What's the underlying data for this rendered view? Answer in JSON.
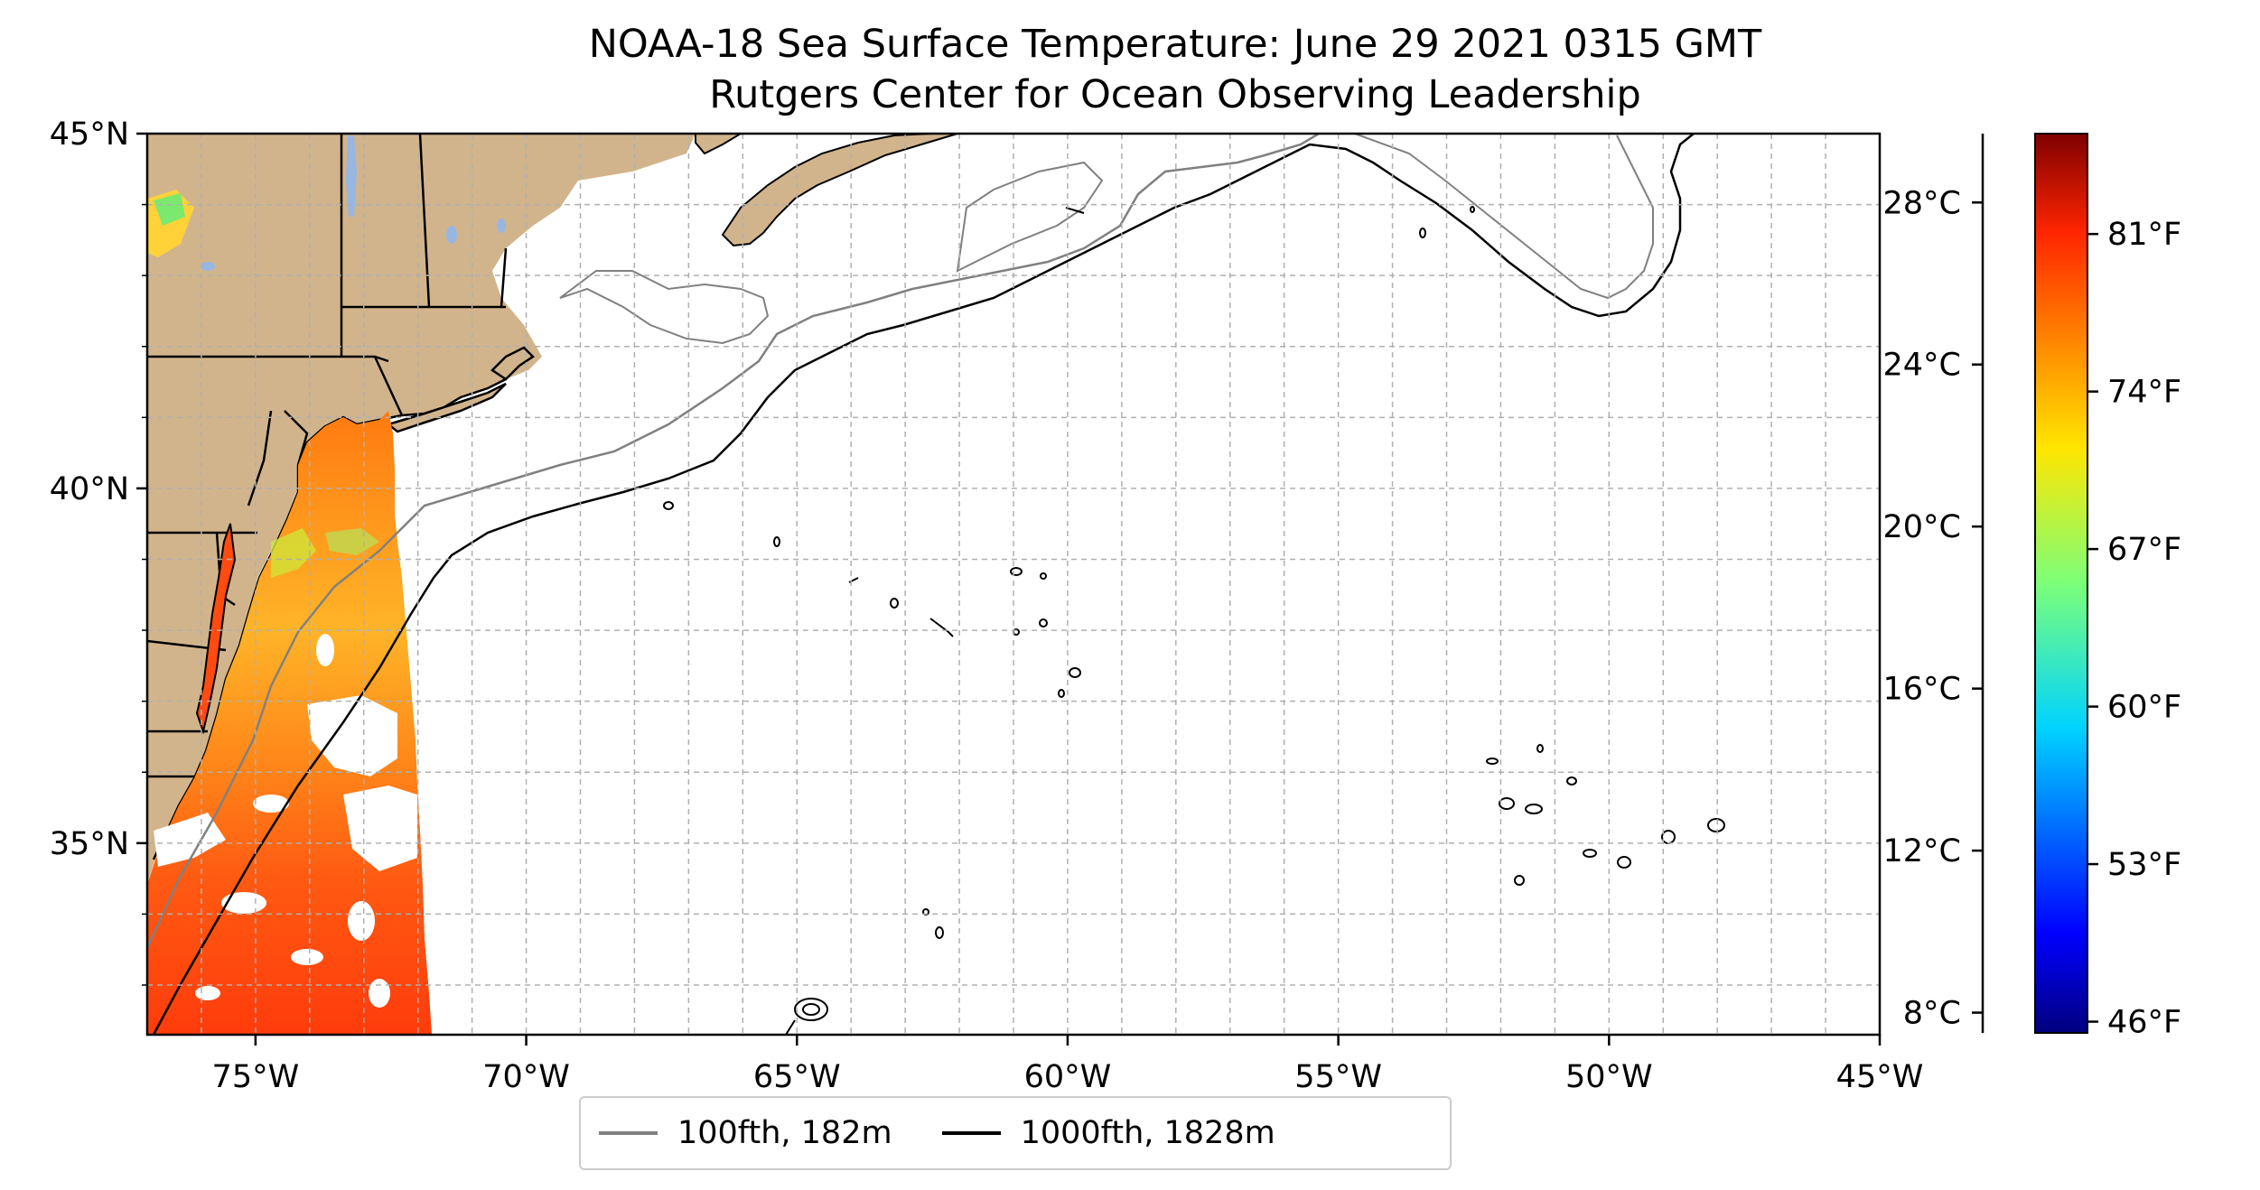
{
  "title": {
    "line1": "NOAA-18 Sea Surface Temperature: June 29 2021 0315 GMT",
    "line2": "Rutgers Center for Ocean Observing Leadership"
  },
  "map": {
    "extent": {
      "lon_min": -77,
      "lon_max": -45,
      "lat_min": 32.3,
      "lat_max": 45
    },
    "x_ticks": [
      {
        "lon": -75,
        "label": "75°W"
      },
      {
        "lon": -70,
        "label": "70°W"
      },
      {
        "lon": -65,
        "label": "65°W"
      },
      {
        "lon": -60,
        "label": "60°W"
      },
      {
        "lon": -55,
        "label": "55°W"
      },
      {
        "lon": -50,
        "label": "50°W"
      },
      {
        "lon": -45,
        "label": "45°W"
      }
    ],
    "y_ticks": [
      {
        "lat": 45,
        "label": "45°N"
      },
      {
        "lat": 40,
        "label": "40°N"
      },
      {
        "lat": 35,
        "label": "35°N"
      }
    ],
    "grid": "dashed, 1 degree",
    "colors": {
      "land": "#d2b48c",
      "lakes": "#97b6e1",
      "contour_100fth": "#808080",
      "contour_1000fth": "#000000"
    }
  },
  "legend": {
    "items": [
      {
        "label": "100fth, 182m",
        "color": "#808080"
      },
      {
        "label": "1000fth, 1828m",
        "color": "#000000"
      }
    ]
  },
  "colorbar": {
    "colormap": "jet",
    "range_c": [
      7.5,
      29.7
    ],
    "celsius_ticks": [
      {
        "value": 28,
        "label": "28°C"
      },
      {
        "value": 24,
        "label": "24°C"
      },
      {
        "value": 20,
        "label": "20°C"
      },
      {
        "value": 16,
        "label": "16°C"
      },
      {
        "value": 12,
        "label": "12°C"
      },
      {
        "value": 8,
        "label": "8°C"
      }
    ],
    "fahrenheit_ticks": [
      {
        "value": 81,
        "label": "81°F"
      },
      {
        "value": 74,
        "label": "74°F"
      },
      {
        "value": 67,
        "label": "67°F"
      },
      {
        "value": 60,
        "label": "60°F"
      },
      {
        "value": 53,
        "label": "53°F"
      },
      {
        "value": 46,
        "label": "46°F"
      }
    ]
  }
}
